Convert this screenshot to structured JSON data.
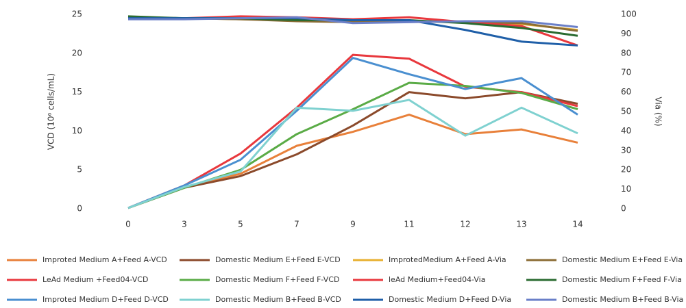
{
  "chart_data": {
    "type": "line",
    "y_label": "VCD (10⁶ cells/mL)",
    "y2_label": "Via (%)",
    "categories": [
      "0",
      "3",
      "5",
      "7",
      "9",
      "11",
      "12",
      "13",
      "14"
    ],
    "ylim": [
      0,
      25
    ],
    "yticks": [
      0,
      5,
      10,
      15,
      20,
      25
    ],
    "y2lim": [
      0,
      100
    ],
    "y2ticks": [
      0,
      10,
      20,
      30,
      40,
      50,
      60,
      70,
      80,
      90,
      100
    ],
    "grid": false,
    "series": [
      {
        "name": "Improted Medium A+Feed A-VCD",
        "color": "#e8803a",
        "values": [
          0.1,
          2.8,
          4.5,
          8.1,
          9.9,
          12.1,
          9.6,
          10.2,
          8.5
        ]
      },
      {
        "name": "Domestic Medium E+Feed E-VCD",
        "color": "#8b4a2b",
        "values": [
          0.1,
          2.7,
          4.2,
          7.0,
          10.7,
          15.0,
          14.2,
          15.0,
          13.5
        ]
      },
      {
        "name": "ImprotedMedium A+Feed A-Via",
        "color": "#e8b030",
        "axis": "y2",
        "values": [
          98,
          98,
          97.5,
          97,
          96.5,
          96.5,
          96,
          95,
          92
        ]
      },
      {
        "name": "Domestic Medium E+Feed E-Via",
        "color": "#8b6d35",
        "axis": "y2",
        "values": [
          98.5,
          98,
          97.5,
          96.5,
          96,
          96.5,
          96,
          95.5,
          91.5
        ]
      },
      {
        "name": "LeAd Medium +Feed04-VCD",
        "color": "#e8383d",
        "values": [
          0.1,
          3.0,
          7.1,
          13.0,
          19.8,
          19.3,
          15.7,
          15.0,
          13.2
        ]
      },
      {
        "name": "Domestic Medium F+Feed F-VCD",
        "color": "#5aab46",
        "values": [
          0.1,
          2.7,
          5.0,
          9.6,
          12.8,
          16.2,
          15.8,
          14.9,
          12.8
        ]
      },
      {
        "name": "leAd Medium+Feed04-Via",
        "color": "#e8383d",
        "axis": "y2",
        "values": [
          98,
          98,
          99,
          98.5,
          97.5,
          98.5,
          96,
          94,
          84
        ]
      },
      {
        "name": "Domestic Medium F+Feed F-Via",
        "color": "#2a6b30",
        "axis": "y2",
        "values": [
          99,
          98,
          98,
          97,
          97,
          97,
          95.5,
          93,
          89
        ]
      },
      {
        "name": "Improted Medium D+Feed D-VCD",
        "color": "#4a8fd0",
        "values": [
          0.1,
          3.0,
          6.3,
          12.6,
          19.4,
          17.3,
          15.4,
          16.8,
          12.1
        ]
      },
      {
        "name": "Domestic Medium B+Feed B-VCD",
        "color": "#7fd1d0",
        "values": [
          0.1,
          2.8,
          4.8,
          13.0,
          12.6,
          14.0,
          9.4,
          13.0,
          9.7
        ]
      },
      {
        "name": "Domestic Medium D+Feed D-Via",
        "color": "#1f5fa8",
        "axis": "y2",
        "values": [
          98,
          98,
          98,
          98,
          97,
          97,
          92,
          86,
          84
        ]
      },
      {
        "name": "Domestic Medium B+Feed B-Via",
        "color": "#6a7fc8",
        "axis": "y2",
        "values": [
          97.5,
          97.5,
          98,
          98.5,
          95.5,
          96,
          96.5,
          96.5,
          93.5
        ]
      }
    ]
  }
}
